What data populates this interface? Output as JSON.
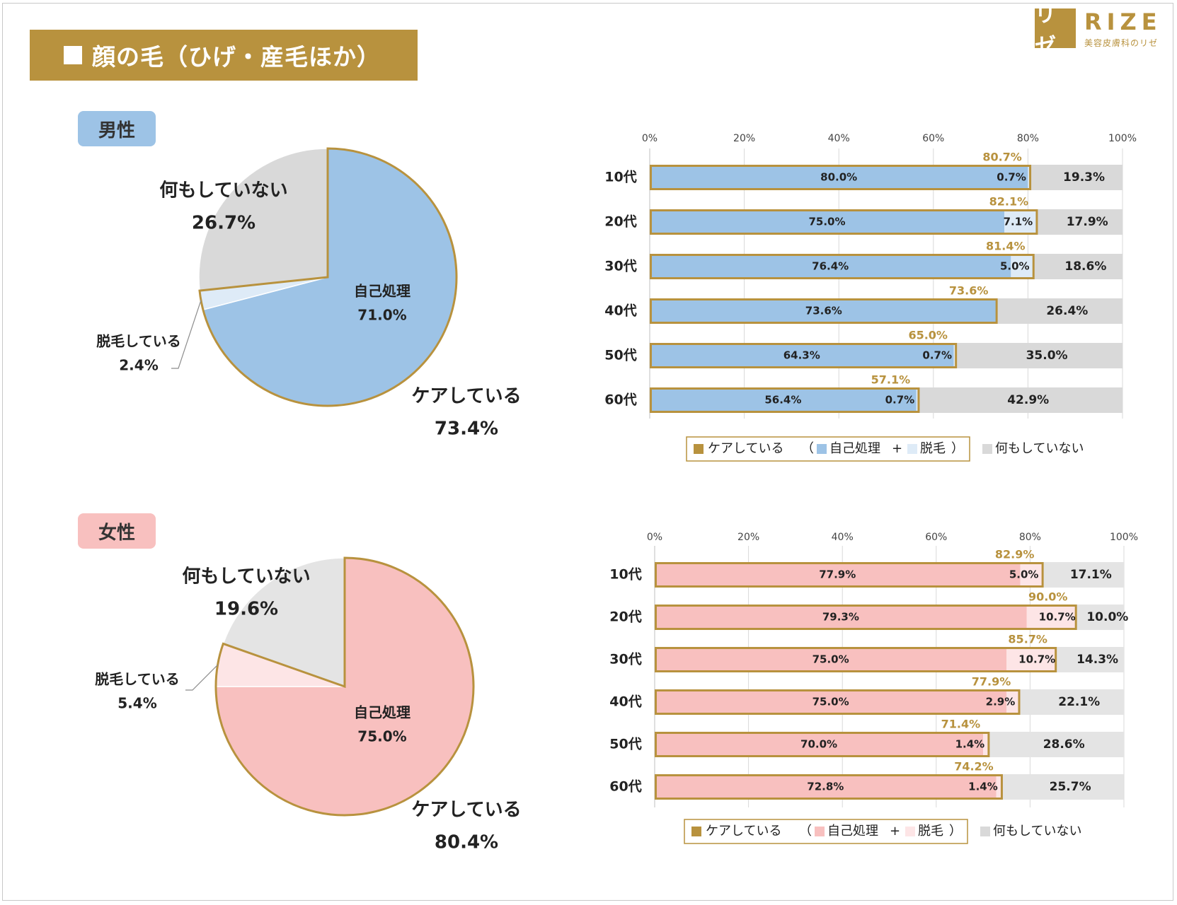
{
  "title": "顔の毛（ひげ・産毛ほか）",
  "logo": {
    "mark": "リゼ",
    "word": "RIZE",
    "sub": "美容皮膚科のリゼ"
  },
  "colors": {
    "gold": "#b8923e",
    "male_self": "#9dc3e6",
    "male_removal": "#deebf7",
    "female_self": "#f8c0bf",
    "female_removal": "#fde5e6",
    "nothing_male": "#d9d9d9",
    "nothing_female": "#e4e4e4"
  },
  "legend": {
    "care": "ケアしている",
    "open_paren": "（",
    "self": "自己処理",
    "plus": "+",
    "removal": "脱毛",
    "close_paren": "）",
    "nothing": "何もしていない"
  },
  "chart_data": [
    {
      "id": "male-pie",
      "type": "pie",
      "title": "男性",
      "slices": [
        {
          "label": "自己処理",
          "value": 71.0,
          "display": "71.0%"
        },
        {
          "label": "脱毛している",
          "value": 2.4,
          "display": "2.4%"
        },
        {
          "label": "何もしていない",
          "value": 26.7,
          "display": "26.7%"
        }
      ],
      "group_label": {
        "label": "ケアしている",
        "value": 73.4,
        "display": "73.4%"
      }
    },
    {
      "id": "male-bar",
      "type": "bar",
      "title": "男性",
      "orientation": "horizontal",
      "stacked": true,
      "categories": [
        "10代",
        "20代",
        "30代",
        "40代",
        "50代",
        "60代"
      ],
      "series": [
        {
          "name": "自己処理",
          "values": [
            80.0,
            75.0,
            76.4,
            73.6,
            64.3,
            56.4
          ],
          "labels": [
            "80.0%",
            "75.0%",
            "76.4%",
            "73.6%",
            "64.3%",
            "56.4%"
          ]
        },
        {
          "name": "脱毛",
          "values": [
            0.7,
            7.1,
            5.0,
            0,
            0.7,
            0.7
          ],
          "labels": [
            "0.7%",
            "7.1%",
            "5.0%",
            "",
            "0.7%",
            "0.7%"
          ]
        },
        {
          "name": "何もしていない",
          "values": [
            19.3,
            17.9,
            18.6,
            26.4,
            35.0,
            42.9
          ],
          "labels": [
            "19.3%",
            "17.9%",
            "18.6%",
            "26.4%",
            "35.0%",
            "42.9%"
          ]
        }
      ],
      "care_totals": [
        80.7,
        82.1,
        81.4,
        73.6,
        65.0,
        57.1
      ],
      "care_labels": [
        "80.7%",
        "82.1%",
        "81.4%",
        "73.6%",
        "65.0%",
        "57.1%"
      ],
      "xlim": [
        0,
        100
      ],
      "xticks": [
        "0%",
        "20%",
        "40%",
        "60%",
        "80%",
        "100%"
      ],
      "grid": true
    },
    {
      "id": "female-pie",
      "type": "pie",
      "title": "女性",
      "slices": [
        {
          "label": "自己処理",
          "value": 75.0,
          "display": "75.0%"
        },
        {
          "label": "脱毛している",
          "value": 5.4,
          "display": "5.4%"
        },
        {
          "label": "何もしていない",
          "value": 19.6,
          "display": "19.6%"
        }
      ],
      "group_label": {
        "label": "ケアしている",
        "value": 80.4,
        "display": "80.4%"
      }
    },
    {
      "id": "female-bar",
      "type": "bar",
      "title": "女性",
      "orientation": "horizontal",
      "stacked": true,
      "categories": [
        "10代",
        "20代",
        "30代",
        "40代",
        "50代",
        "60代"
      ],
      "series": [
        {
          "name": "自己処理",
          "values": [
            77.9,
            79.3,
            75.0,
            75.0,
            70.0,
            72.8
          ],
          "labels": [
            "77.9%",
            "79.3%",
            "75.0%",
            "75.0%",
            "70.0%",
            "72.8%"
          ]
        },
        {
          "name": "脱毛",
          "values": [
            5.0,
            10.7,
            10.7,
            2.9,
            1.4,
            1.4
          ],
          "labels": [
            "5.0%",
            "10.7%",
            "10.7%",
            "2.9%",
            "1.4%",
            "1.4%"
          ]
        },
        {
          "name": "何もしていない",
          "values": [
            17.1,
            10.0,
            14.3,
            22.1,
            28.6,
            25.7
          ],
          "labels": [
            "17.1%",
            "10.0%",
            "14.3%",
            "22.1%",
            "28.6%",
            "25.7%"
          ]
        }
      ],
      "care_totals": [
        82.9,
        90.0,
        85.7,
        77.9,
        71.4,
        74.2
      ],
      "care_labels": [
        "82.9%",
        "90.0%",
        "85.7%",
        "77.9%",
        "71.4%",
        "74.2%"
      ],
      "xlim": [
        0,
        100
      ],
      "xticks": [
        "0%",
        "20%",
        "40%",
        "60%",
        "80%",
        "100%"
      ],
      "grid": true
    }
  ]
}
